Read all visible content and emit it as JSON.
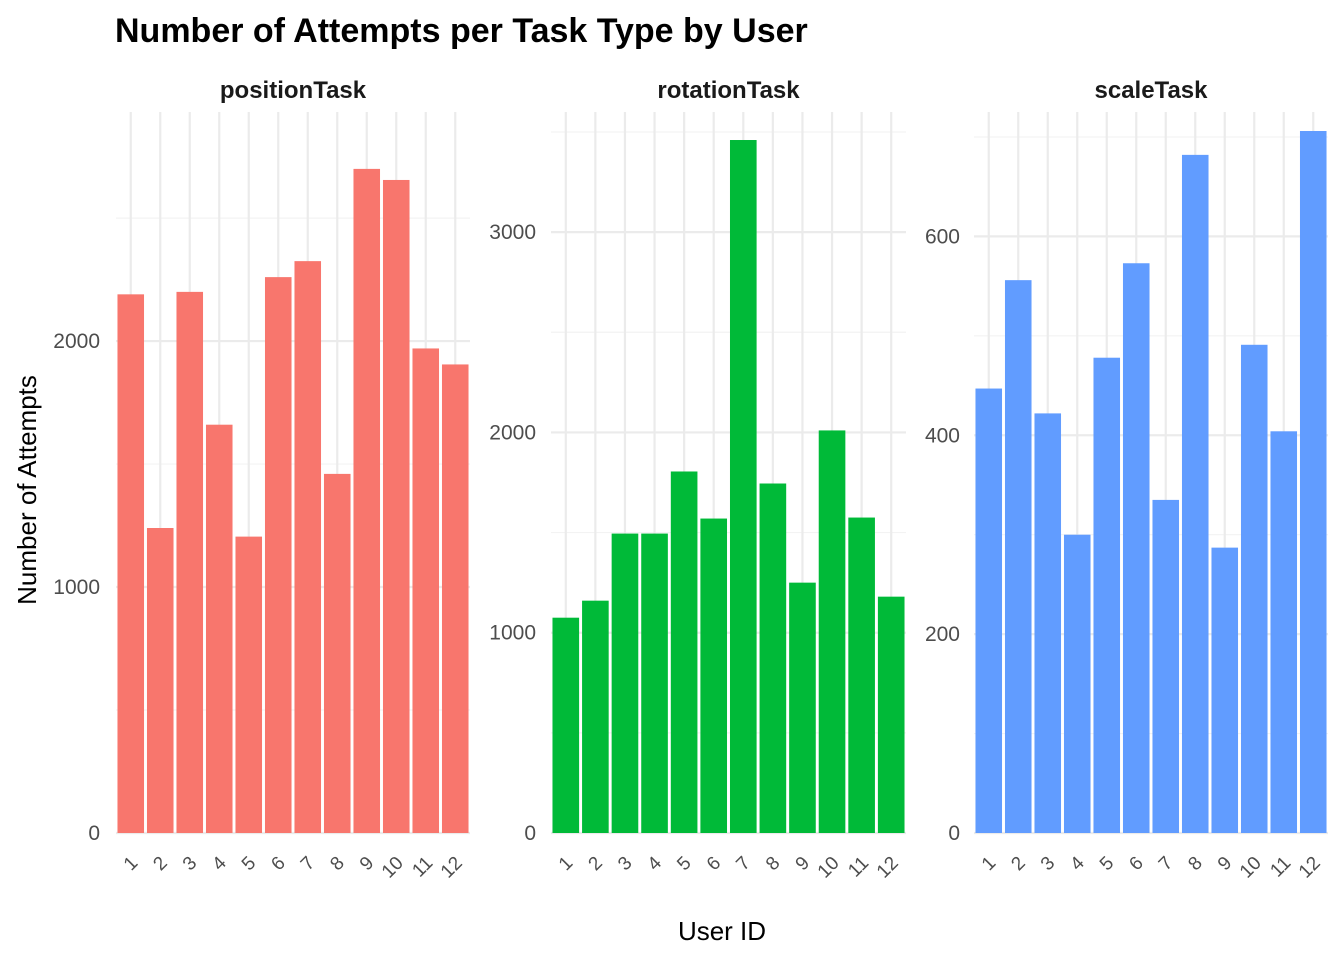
{
  "chart_data": {
    "type": "bar",
    "title": "Number of Attempts per Task Type by User",
    "xlabel": "User ID",
    "ylabel": "Number of Attempts",
    "grid": true,
    "legend": "none",
    "categories": [
      "1",
      "2",
      "3",
      "4",
      "5",
      "6",
      "7",
      "8",
      "9",
      "10",
      "11",
      "12"
    ],
    "panels": [
      {
        "name": "positionTask",
        "color": "#F8766D",
        "ylim": [
          0,
          2850
        ],
        "yticks": [
          0,
          1000,
          2000
        ],
        "values": [
          2190,
          1240,
          2200,
          1660,
          1205,
          2260,
          2325,
          1460,
          2700,
          2655,
          1970,
          1905
        ]
      },
      {
        "name": "rotationTask",
        "color": "#00BA38",
        "ylim": [
          0,
          3500
        ],
        "yticks": [
          0,
          1000,
          2000,
          3000
        ],
        "values": [
          1075,
          1160,
          1495,
          1495,
          1805,
          1570,
          3460,
          1745,
          1250,
          2010,
          1575,
          1180
        ]
      },
      {
        "name": "scaleTask",
        "color": "#619CFF",
        "ylim": [
          0,
          705
        ],
        "yticks": [
          0,
          200,
          400,
          600
        ],
        "values": [
          447,
          556,
          422,
          300,
          478,
          573,
          335,
          682,
          287,
          491,
          404,
          706
        ]
      }
    ]
  }
}
